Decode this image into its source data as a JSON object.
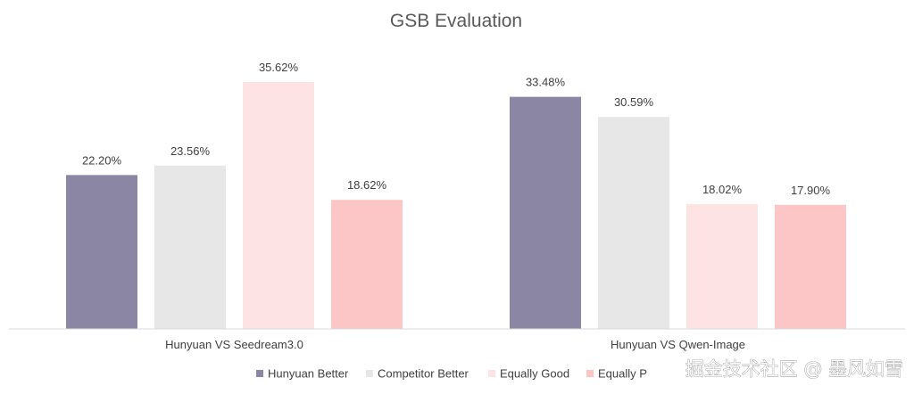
{
  "chart_data": {
    "type": "bar",
    "title": "GSB Evaluation",
    "categories": [
      "Hunyuan VS Seedream3.0",
      "Hunyuan VS Qwen-Image"
    ],
    "series": [
      {
        "name": "Hunyuan Better",
        "values": [
          22.2,
          33.48
        ],
        "labels": [
          "22.20%",
          "33.48%"
        ],
        "color": "#8a86a3"
      },
      {
        "name": "Competitor Better",
        "values": [
          23.56,
          30.59
        ],
        "labels": [
          "23.56%",
          "30.59%"
        ],
        "color": "#e7e7e7"
      },
      {
        "name": "Equally Good",
        "values": [
          35.62,
          18.02
        ],
        "labels": [
          "35.62%",
          "18.02%"
        ],
        "color": "#fde3e3"
      },
      {
        "name": "Equally Poor",
        "values": [
          18.62,
          17.9
        ],
        "labels": [
          "18.62%",
          "17.90%"
        ],
        "color": "#fdc6c6"
      }
    ],
    "legend_labels": [
      "Hunyuan Better",
      "Competitor Better",
      "Equally Good",
      "Equally P"
    ],
    "ylim": [
      0,
      40
    ],
    "grid": false,
    "legend_position": "bottom",
    "xlabel": "",
    "ylabel": ""
  },
  "watermark": "掘金技术社区 @ 墨风如雪"
}
